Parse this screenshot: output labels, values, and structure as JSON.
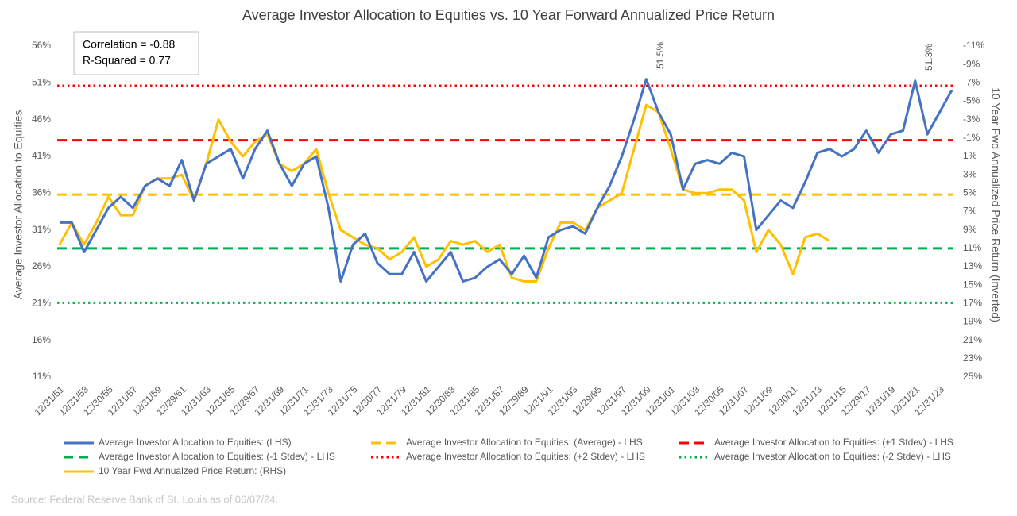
{
  "chart_data": {
    "type": "line",
    "title": "Average Investor Allocation to Equities vs. 10 Year Forward Annualized Price Return",
    "y_label": "Average Investor Allocation to Equities",
    "y2_label": "10 Year Fwd Annualized Price Return (Inverted)",
    "textbox": [
      "Correlation = -0.88",
      "R-Squared = 0.77"
    ],
    "source": "Source: Federal Reserve Bank of St. Louis as of 06/07/24.",
    "annotations": [
      {
        "text": "51.5%"
      },
      {
        "text": "51.3%"
      }
    ],
    "categories": [
      "12/31/51",
      null,
      "12/31/53",
      null,
      "12/30/55",
      null,
      "12/31/57",
      null,
      "12/31/59",
      null,
      "12/29/61",
      null,
      "12/31/63",
      null,
      "12/31/65",
      null,
      "12/29/67",
      null,
      "12/31/69",
      null,
      "12/31/71",
      null,
      "12/31/73",
      null,
      "12/31/75",
      null,
      "12/30/77",
      null,
      "12/31/79",
      null,
      "12/31/81",
      null,
      "12/30/83",
      null,
      "12/31/85",
      null,
      "12/31/87",
      null,
      "12/29/89",
      null,
      "12/31/91",
      null,
      "12/31/93",
      null,
      "12/29/95",
      null,
      "12/31/97",
      null,
      "12/31/99",
      null,
      "12/31/01",
      null,
      "12/31/03",
      null,
      "12/30/05",
      null,
      "12/31/07",
      null,
      "12/31/09",
      null,
      "12/30/11",
      null,
      "12/31/13",
      null,
      "12/31/15",
      null,
      "12/29/17",
      null,
      "12/31/19",
      null,
      "12/31/21",
      null,
      "12/31/23",
      null
    ],
    "ylim": [
      11,
      56
    ],
    "yticks": [
      {
        "value": 11,
        "label": "11%"
      },
      {
        "value": 16,
        "label": "16%"
      },
      {
        "value": 21,
        "label": "21%"
      },
      {
        "value": 26,
        "label": "26%"
      },
      {
        "value": 31,
        "label": "31%"
      },
      {
        "value": 36,
        "label": "36%"
      },
      {
        "value": 41,
        "label": "41%"
      },
      {
        "value": 46,
        "label": "46%"
      },
      {
        "value": 51,
        "label": "51%"
      },
      {
        "value": 56,
        "label": "56%"
      }
    ],
    "y2lim": [
      -11,
      25
    ],
    "y2_inverted": true,
    "y2ticks": [
      {
        "value": -11,
        "label": "-11%"
      },
      {
        "value": -9,
        "label": "-9%"
      },
      {
        "value": -7,
        "label": "-7%"
      },
      {
        "value": -5,
        "label": "-5%"
      },
      {
        "value": -3,
        "label": "-3%"
      },
      {
        "value": -1,
        "label": "-1%"
      },
      {
        "value": 1,
        "label": "1%"
      },
      {
        "value": 3,
        "label": "3%"
      },
      {
        "value": 5,
        "label": "5%"
      },
      {
        "value": 7,
        "label": "7%"
      },
      {
        "value": 9,
        "label": "9%"
      },
      {
        "value": 11,
        "label": "11%"
      },
      {
        "value": 13,
        "label": "13%"
      },
      {
        "value": 15,
        "label": "15%"
      },
      {
        "value": 17,
        "label": "17%"
      },
      {
        "value": 19,
        "label": "19%"
      },
      {
        "value": 21,
        "label": "21%"
      },
      {
        "value": 23,
        "label": "23%"
      },
      {
        "value": 25,
        "label": "25%"
      }
    ],
    "series": [
      {
        "name": "Average Investor Allocation to Equities: (LHS)",
        "color": "#4472c4",
        "style": "solid",
        "values": [
          32,
          32,
          28,
          31,
          34,
          35.5,
          34,
          37,
          38,
          37,
          40.5,
          35,
          40,
          41,
          42,
          38,
          42,
          44.5,
          40,
          37,
          40,
          41,
          34,
          24,
          29,
          30.5,
          26.5,
          25,
          25,
          28,
          24,
          26,
          28,
          24,
          24.5,
          26,
          27,
          25,
          27.5,
          24.5,
          30,
          31,
          31.5,
          30.5,
          34,
          37,
          41,
          46,
          51.5,
          47,
          44,
          36.5,
          40,
          40.5,
          40,
          41.5,
          41,
          31,
          33,
          35,
          34,
          37.5,
          41.5,
          42,
          41,
          42,
          44.5,
          41.5,
          44,
          44.5,
          51.3,
          44,
          47,
          50
        ]
      },
      {
        "name": "Average Investor Allocation to Equities: (Average) - LHS",
        "color": "#ffc000",
        "style": "dashed",
        "value": 35.8
      },
      {
        "name": "Average Investor Allocation to Equities: (+1 Stdev) - LHS",
        "color": "#ff0000",
        "style": "dashed",
        "value": 43.2
      },
      {
        "name": "Average Investor Allocation to Equities: (-1 Stdev) - LHS",
        "color": "#00b050",
        "style": "dashed",
        "value": 28.5
      },
      {
        "name": "Average Investor Allocation to Equities: (+2 Stdev) - LHS",
        "color": "#ff0000",
        "style": "dotted",
        "value": 50.6
      },
      {
        "name": "Average Investor Allocation to Equities: (-2 Stdev) - LHS",
        "color": "#00b050",
        "style": "dotted",
        "value": 21.1
      },
      {
        "name": "10 Year Fwd Annualzed Price Return: (RHS)",
        "color": "#ffc000",
        "style": "solid",
        "axis": "y2",
        "values": [
          10.6,
          8.2,
          10.6,
          8.2,
          5.4,
          7.4,
          7.4,
          4.2,
          3.4,
          3.4,
          3,
          5.8,
          1.8,
          -3,
          -0.6,
          1,
          -0.6,
          -1.4,
          1.8,
          2.6,
          1.8,
          0.2,
          5,
          9,
          9.8,
          10.6,
          11,
          12.2,
          11.4,
          9.8,
          13,
          12.2,
          10.2,
          10.6,
          10.2,
          11.4,
          10.6,
          14.2,
          14.6,
          14.6,
          11,
          8.2,
          8.2,
          9,
          6.6,
          5.8,
          5,
          0.2,
          -4.6,
          -3.8,
          0.2,
          4.6,
          5,
          5,
          4.6,
          4.6,
          5.8,
          11.4,
          9,
          10.6,
          13.8,
          9.8,
          9.4,
          10.2,
          null,
          null,
          null,
          null,
          null,
          null,
          null,
          null,
          null,
          null
        ]
      }
    ]
  }
}
